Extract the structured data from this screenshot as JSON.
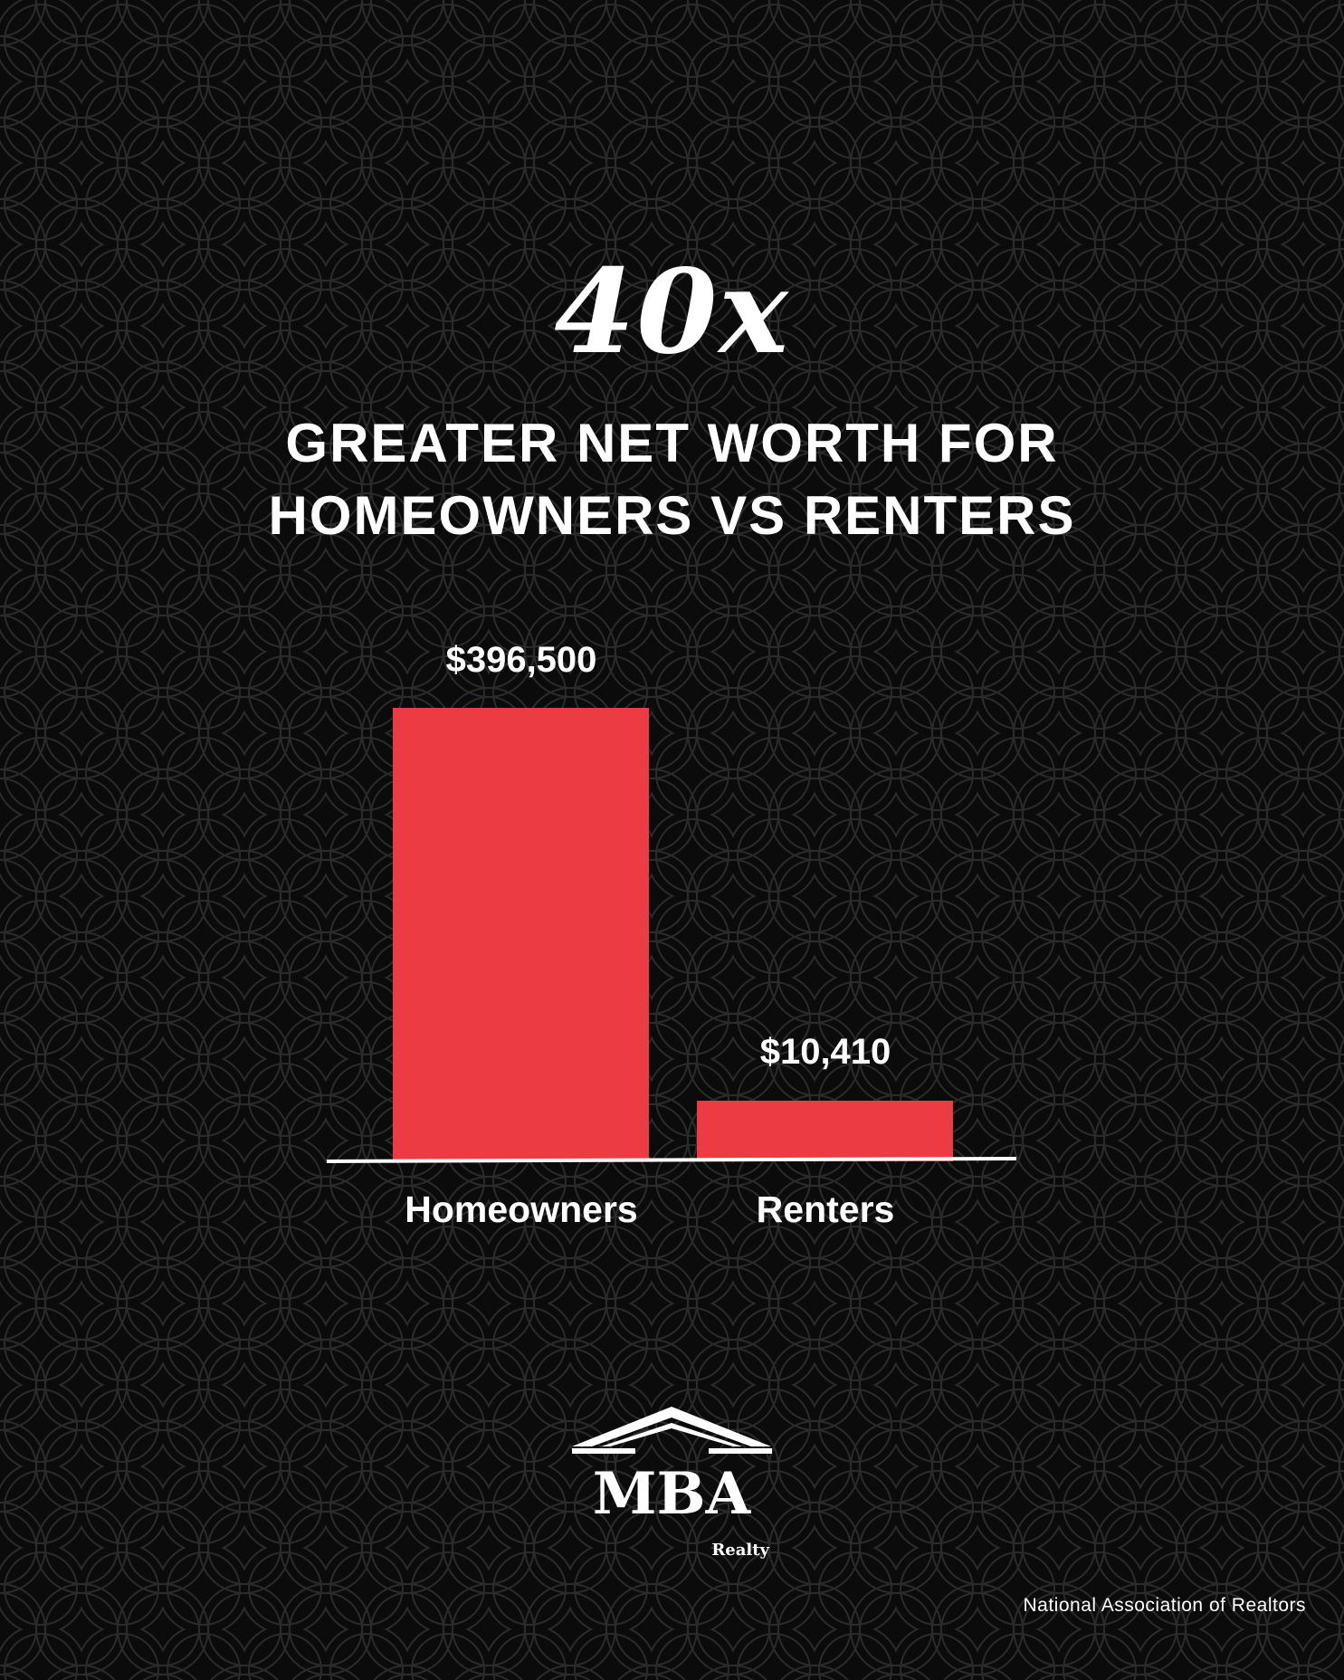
{
  "headline": "40x",
  "subtitle": [
    "GREATER NET WORTH FOR",
    "HOMEOWNERS VS RENTERS"
  ],
  "chart_data": {
    "type": "bar",
    "categories": [
      "Homeowners",
      "Renters"
    ],
    "values": [
      396500,
      10410
    ],
    "value_labels": [
      "$396,500",
      "$10,410"
    ],
    "bar_color": "#ec3b43",
    "grid": false,
    "title": "",
    "xlabel": "",
    "ylabel": ""
  },
  "logo": {
    "main": "MBA",
    "sub": "Realty"
  },
  "source": "National Association of Realtors",
  "colors": {
    "background": "#0b0b0b",
    "pattern": "#2b2b2b",
    "text": "#ffffff"
  }
}
